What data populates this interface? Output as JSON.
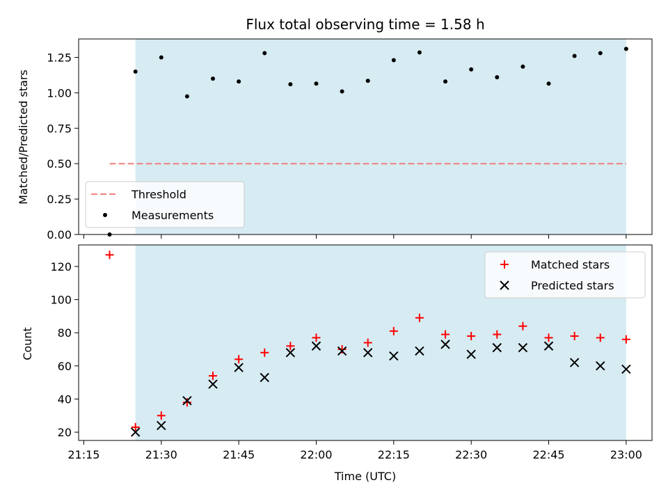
{
  "chart_data": [
    {
      "type": "scatter",
      "title": "Flux total observing time = 1.58 h",
      "ylabel": "Matched/Predicted stars",
      "ylim": [
        0,
        1.38
      ],
      "yticks": [
        "0.00",
        "0.25",
        "0.50",
        "0.75",
        "1.00",
        "1.25"
      ],
      "shaded_interval": [
        "21:25",
        "23:00"
      ],
      "shade_color": "#add8e6",
      "legend_position": "lower-left",
      "series": [
        {
          "name": "Threshold",
          "kind": "dashed-line",
          "color": "#f08080",
          "x": [
            "21:20",
            "23:00"
          ],
          "values": [
            0.5,
            0.5
          ]
        },
        {
          "name": "Measurements",
          "kind": "dot",
          "color": "#000000",
          "x": [
            "21:20",
            "21:25",
            "21:30",
            "21:35",
            "21:40",
            "21:45",
            "21:50",
            "21:55",
            "22:00",
            "22:05",
            "22:10",
            "22:15",
            "22:20",
            "22:25",
            "22:30",
            "22:35",
            "22:40",
            "22:45",
            "22:50",
            "22:55",
            "23:00"
          ],
          "values": [
            0.0,
            1.15,
            1.25,
            0.975,
            1.1,
            1.08,
            1.28,
            1.06,
            1.065,
            1.01,
            1.085,
            1.23,
            1.285,
            1.08,
            1.165,
            1.11,
            1.185,
            1.065,
            1.26,
            1.28,
            1.31
          ]
        }
      ]
    },
    {
      "type": "scatter",
      "xlabel": "Time (UTC)",
      "ylabel": "Count",
      "ylim": [
        15,
        133
      ],
      "yticks": [
        "20",
        "40",
        "60",
        "80",
        "100",
        "120"
      ],
      "xticks": [
        "21:15",
        "21:30",
        "21:45",
        "22:00",
        "22:15",
        "22:30",
        "22:45",
        "23:00"
      ],
      "legend_position": "upper-right",
      "series": [
        {
          "name": "Matched stars",
          "kind": "plus",
          "color": "#ff0000",
          "x": [
            "21:20",
            "21:25",
            "21:30",
            "21:35",
            "21:40",
            "21:45",
            "21:50",
            "21:55",
            "22:00",
            "22:05",
            "22:10",
            "22:15",
            "22:20",
            "22:25",
            "22:30",
            "22:35",
            "22:40",
            "22:45",
            "22:50",
            "22:55",
            "23:00"
          ],
          "values": [
            127,
            23,
            30,
            38,
            54,
            64,
            68,
            72,
            77,
            70,
            74,
            81,
            89,
            79,
            78,
            79,
            84,
            77,
            78,
            77,
            76
          ]
        },
        {
          "name": "Predicted stars",
          "kind": "x",
          "color": "#000000",
          "x": [
            "21:25",
            "21:30",
            "21:35",
            "21:40",
            "21:45",
            "21:50",
            "21:55",
            "22:00",
            "22:05",
            "22:10",
            "22:15",
            "22:20",
            "22:25",
            "22:30",
            "22:35",
            "22:40",
            "22:45",
            "22:50",
            "22:55",
            "23:00"
          ],
          "values": [
            20,
            24,
            39,
            49,
            59,
            53,
            68,
            72,
            69,
            68,
            66,
            69,
            73,
            67,
            71,
            71,
            72,
            62,
            60,
            58
          ]
        }
      ]
    }
  ]
}
